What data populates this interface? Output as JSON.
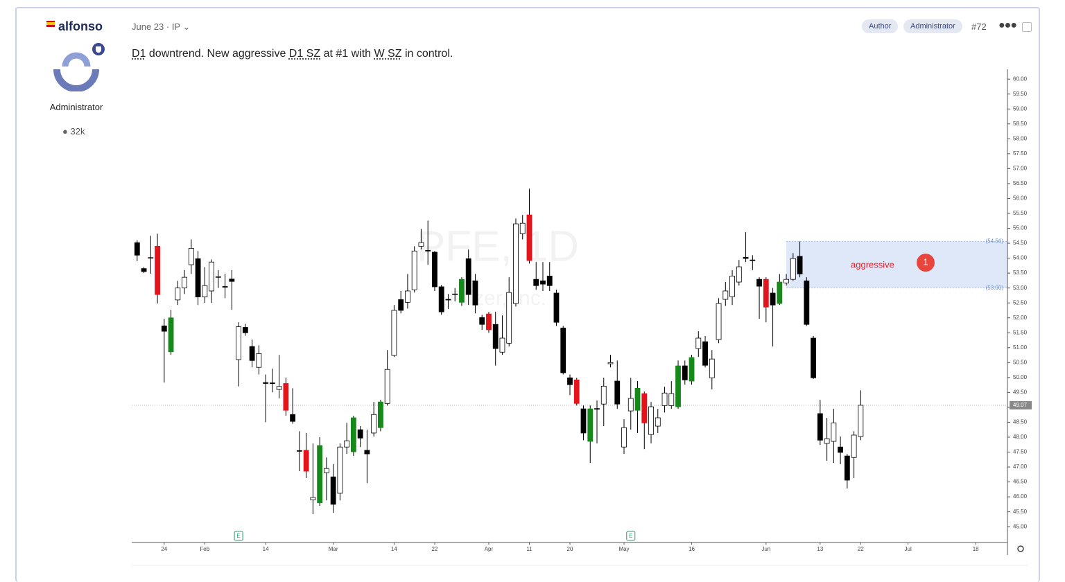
{
  "post": {
    "author": "alfonso",
    "role": "Administrator",
    "post_count": "32k",
    "date": "June 23 · IP",
    "badges": [
      "Author",
      "Administrator"
    ],
    "number": "#72",
    "body": [
      "D1",
      " downtrend. New aggressive ",
      "D1 SZ",
      " at #1 with ",
      "W SZ",
      " in control."
    ]
  },
  "chart_data": {
    "type": "candlestick",
    "watermark": [
      "PFE, 1D",
      "Pfizer, Inc."
    ],
    "x": [
      0,
      1,
      2,
      3,
      4,
      5,
      6,
      7,
      8,
      9,
      10,
      11,
      12,
      13,
      14,
      15,
      16,
      17,
      18,
      19,
      20,
      21,
      22,
      23,
      24,
      25,
      26,
      27,
      28,
      29,
      30,
      31,
      32,
      33,
      34,
      35,
      36,
      37,
      38,
      39,
      40,
      41,
      42,
      43,
      44,
      45,
      46,
      47,
      48,
      49,
      50,
      51,
      52,
      53,
      54,
      55,
      56,
      57,
      58,
      59,
      60,
      61,
      62,
      63,
      64,
      65,
      66,
      67,
      68,
      69,
      70,
      71,
      72,
      73,
      74,
      75,
      76,
      77,
      78,
      79,
      80,
      81,
      82,
      83,
      84,
      85,
      86,
      87,
      88,
      89,
      90,
      91,
      92,
      93,
      94,
      95,
      96,
      97,
      98,
      99,
      100,
      101,
      102,
      103,
      104,
      105,
      106,
      107
    ],
    "open": [
      54.52,
      53.65,
      54.0,
      54.4,
      51.73,
      50.86,
      52.6,
      53.0,
      53.78,
      53.98,
      52.7,
      52.9,
      53.36,
      53.05,
      53.3,
      50.6,
      51.68,
      51.04,
      50.34,
      49.83,
      49.82,
      49.6,
      49.8,
      48.76,
      47.55,
      47.56,
      45.9,
      45.8,
      46.81,
      46.67,
      46.12,
      47.67,
      47.51,
      48.25,
      47.56,
      48.14,
      48.32,
      49.13,
      50.74,
      52.61,
      52.52,
      52.94,
      54.4,
      54.26,
      54.2,
      53.04,
      52.62,
      52.78,
      52.52,
      53.98,
      53.24,
      52.01,
      52.13,
      51.78,
      50.85,
      51.15,
      52.48,
      54.82,
      55.45,
      53.29,
      53.24,
      53.4,
      52.83,
      51.66,
      49.99,
      49.92,
      48.95,
      47.86,
      48.96,
      49.11,
      50.46,
      49.88,
      47.67,
      48.88,
      48.9,
      49.46,
      48.09,
      48.37,
      49.06,
      49.06,
      49.02,
      50.39,
      49.88,
      50.97,
      51.2,
      49.99,
      51.27,
      52.62,
      52.71,
      53.2,
      54.03,
      53.94,
      53.29,
      53.29,
      52.83,
      52.48,
      53.17,
      53.29,
      54.06,
      53.24,
      51.32,
      48.79,
      47.79,
      47.86,
      47.67,
      47.37,
      47.32,
      48.02
    ],
    "high": [
      54.6,
      53.7,
      54.75,
      54.82,
      51.97,
      52.27,
      53.24,
      53.6,
      54.63,
      54.24,
      53.7,
      53.96,
      53.6,
      53.48,
      53.6,
      51.85,
      51.8,
      51.27,
      51.08,
      50.1,
      50.3,
      50.76,
      50.0,
      49.64,
      48.2,
      48.14,
      47.79,
      48.0,
      47.32,
      47.1,
      47.79,
      48.48,
      48.72,
      48.37,
      48.25,
      49.18,
      49.25,
      50.92,
      52.43,
      52.9,
      53.47,
      54.4,
      54.98,
      55.26,
      54.24,
      53.1,
      52.8,
      53.0,
      53.36,
      54.29,
      53.47,
      52.1,
      52.2,
      52.2,
      52.08,
      53.36,
      55.33,
      55.45,
      56.33,
      53.87,
      53.87,
      53.87,
      52.94,
      51.73,
      50.1,
      49.99,
      49.06,
      49.06,
      49.23,
      49.99,
      50.76,
      50.57,
      48.6,
      49.99,
      49.88,
      49.53,
      49.18,
      48.95,
      49.69,
      49.88,
      50.57,
      50.57,
      50.76,
      51.55,
      51.39,
      50.92,
      52.66,
      53.2,
      53.6,
      53.94,
      54.87,
      54.1,
      53.36,
      53.36,
      53.0,
      53.47,
      53.47,
      54.17,
      54.56,
      53.36,
      51.39,
      49.25,
      48.65,
      48.95,
      48.02,
      47.44,
      48.2,
      49.57
    ],
    "low": [
      53.9,
      53.5,
      53.48,
      52.48,
      49.83,
      50.76,
      52.43,
      52.8,
      53.47,
      52.43,
      52.5,
      52.5,
      53.0,
      52.66,
      52.27,
      49.7,
      51.4,
      50.34,
      50.1,
      48.5,
      49.5,
      49.3,
      48.72,
      48.45,
      46.86,
      46.63,
      45.42,
      45.7,
      45.88,
      45.47,
      45.88,
      47.44,
      47.37,
      47.67,
      46.46,
      48.02,
      48.2,
      49.06,
      50.69,
      52.15,
      52.31,
      52.85,
      54.29,
      53.78,
      52.9,
      52.1,
      52.3,
      52.55,
      52.4,
      52.43,
      52.15,
      51.6,
      51.5,
      50.4,
      50.76,
      51.04,
      52.38,
      54.63,
      53.82,
      52.94,
      52.9,
      52.9,
      51.73,
      50.1,
      49.41,
      49.06,
      47.9,
      47.14,
      47.79,
      48.37,
      50.34,
      48.95,
      47.44,
      48.25,
      48.14,
      47.6,
      47.79,
      48.14,
      48.83,
      48.95,
      48.95,
      49.76,
      49.76,
      50.69,
      50.34,
      49.6,
      51.15,
      52.4,
      52.43,
      53.08,
      53.87,
      53.6,
      51.97,
      51.85,
      51.04,
      52.43,
      53.08,
      53.24,
      53.36,
      51.73,
      49.95,
      47.74,
      47.21,
      47.14,
      47.09,
      46.28,
      46.63,
      47.9
    ],
    "close": [
      54.1,
      53.55,
      54.02,
      52.78,
      51.55,
      52.0,
      53.0,
      53.36,
      54.33,
      52.7,
      53.08,
      53.87,
      53.38,
      53.03,
      53.22,
      51.7,
      51.5,
      50.57,
      50.8,
      49.8,
      49.8,
      49.7,
      48.9,
      48.53,
      47.53,
      46.86,
      45.98,
      47.72,
      46.95,
      45.75,
      47.67,
      47.88,
      48.65,
      47.97,
      47.44,
      48.76,
      49.18,
      50.27,
      52.25,
      52.25,
      52.9,
      54.24,
      54.52,
      54.24,
      53.04,
      52.2,
      52.6,
      52.8,
      53.29,
      52.78,
      52.43,
      51.78,
      51.6,
      50.97,
      51.32,
      52.85,
      55.15,
      55.17,
      53.92,
      53.08,
      53.13,
      53.08,
      51.85,
      50.16,
      49.76,
      49.13,
      48.14,
      48.95,
      48.95,
      49.71,
      50.5,
      49.11,
      48.32,
      49.3,
      49.64,
      48.48,
      49.02,
      48.65,
      49.48,
      49.46,
      50.39,
      49.92,
      50.67,
      51.32,
      50.41,
      50.62,
      52.48,
      52.9,
      53.4,
      53.71,
      53.99,
      53.92,
      53.06,
      52.36,
      52.43,
      53.2,
      53.29,
      53.99,
      53.47,
      51.78,
      49.99,
      47.9,
      47.95,
      48.48,
      47.49,
      46.56,
      48.07,
      49.07
    ],
    "colors": [
      "#000000",
      "#000000",
      "#ffffff",
      "#e3141c",
      "#000000",
      "#16891a",
      "#ffffff",
      "#ffffff",
      "#ffffff",
      "#000000",
      "#ffffff",
      "#ffffff",
      "#ffffff",
      "#000000",
      "#000000",
      "#ffffff",
      "#000000",
      "#000000",
      "#ffffff",
      "#000000",
      "#000000",
      "#ffffff",
      "#e3141c",
      "#000000",
      "#000000",
      "#e3141c",
      "#ffffff",
      "#16891a",
      "#ffffff",
      "#000000",
      "#ffffff",
      "#ffffff",
      "#16891a",
      "#000000",
      "#000000",
      "#ffffff",
      "#16891a",
      "#ffffff",
      "#ffffff",
      "#000000",
      "#ffffff",
      "#ffffff",
      "#ffffff",
      "#000000",
      "#000000",
      "#000000",
      "#000000",
      "#ffffff",
      "#16891a",
      "#000000",
      "#000000",
      "#000000",
      "#e3141c",
      "#000000",
      "#ffffff",
      "#ffffff",
      "#ffffff",
      "#ffffff",
      "#e3141c",
      "#000000",
      "#000000",
      "#000000",
      "#000000",
      "#000000",
      "#000000",
      "#e3141c",
      "#000000",
      "#16891a",
      "#000000",
      "#ffffff",
      "#ffffff",
      "#000000",
      "#ffffff",
      "#ffffff",
      "#16891a",
      "#e3141c",
      "#ffffff",
      "#ffffff",
      "#ffffff",
      "#ffffff",
      "#16891a",
      "#000000",
      "#16891a",
      "#ffffff",
      "#000000",
      "#ffffff",
      "#ffffff",
      "#ffffff",
      "#ffffff",
      "#ffffff",
      "#000000",
      "#000000",
      "#000000",
      "#e3141c",
      "#000000",
      "#16891a",
      "#ffffff",
      "#ffffff",
      "#000000",
      "#000000",
      "#000000",
      "#000000",
      "#ffffff",
      "#ffffff",
      "#000000",
      "#000000",
      "#ffffff",
      "#ffffff"
    ],
    "xlim": [
      -0.8,
      128.7
    ],
    "ylim": [
      44.47,
      60.33
    ],
    "xticks": [
      {
        "value": 4,
        "label": "24"
      },
      {
        "value": 10,
        "label": "Feb"
      },
      {
        "value": 19,
        "label": "14"
      },
      {
        "value": 29,
        "label": "Mar"
      },
      {
        "value": 38,
        "label": "14"
      },
      {
        "value": 44,
        "label": "22"
      },
      {
        "value": 52,
        "label": "Apr"
      },
      {
        "value": 58,
        "label": "11"
      },
      {
        "value": 64,
        "label": "20"
      },
      {
        "value": 72,
        "label": "May"
      },
      {
        "value": 82,
        "label": "16"
      },
      {
        "value": 93,
        "label": "Jun"
      },
      {
        "value": 101,
        "label": "13"
      },
      {
        "value": 107,
        "label": "22"
      },
      {
        "value": 114,
        "label": "Jul"
      },
      {
        "value": 124,
        "label": "18"
      }
    ],
    "yticks": [
      {
        "value": 60,
        "label": "60.00"
      },
      {
        "value": 59.5,
        "label": "59.50"
      },
      {
        "value": 59,
        "label": "59.00"
      },
      {
        "value": 58.5,
        "label": "58.50"
      },
      {
        "value": 58,
        "label": "58.00"
      },
      {
        "value": 57.5,
        "label": "57.50"
      },
      {
        "value": 57,
        "label": "57.00"
      },
      {
        "value": 56.5,
        "label": "56.50"
      },
      {
        "value": 56,
        "label": "56.00"
      },
      {
        "value": 55.5,
        "label": "55.50"
      },
      {
        "value": 55,
        "label": "55.00"
      },
      {
        "value": 54.5,
        "label": "54.50"
      },
      {
        "value": 54,
        "label": "54.00"
      },
      {
        "value": 53.5,
        "label": "53.50"
      },
      {
        "value": 53,
        "label": "53.00"
      },
      {
        "value": 52.5,
        "label": "52.50"
      },
      {
        "value": 52,
        "label": "52.00"
      },
      {
        "value": 51.5,
        "label": "51.50"
      },
      {
        "value": 51,
        "label": "51.00"
      },
      {
        "value": 50.5,
        "label": "50.50"
      },
      {
        "value": 50,
        "label": "50.00"
      },
      {
        "value": 49.5,
        "label": "49.50"
      },
      {
        "value": 49,
        "label": "49.00"
      },
      {
        "value": 48.5,
        "label": "48.50"
      },
      {
        "value": 48,
        "label": "48.00"
      },
      {
        "value": 47.5,
        "label": "47.50"
      },
      {
        "value": 47,
        "label": "47.00"
      },
      {
        "value": 46.5,
        "label": "46.50"
      },
      {
        "value": 46,
        "label": "46.00"
      },
      {
        "value": 45.5,
        "label": "45.50"
      },
      {
        "value": 45,
        "label": "45.00"
      }
    ],
    "last_price": {
      "value": 49.07,
      "label": "49.07"
    },
    "zone": {
      "x_start": 96,
      "top": {
        "value": 54.56,
        "label": "(54.56)"
      },
      "bottom": {
        "value": 53.0,
        "label": "(53.00)"
      },
      "label": "aggressive",
      "marker": "1",
      "color": "#dbe6f8"
    },
    "events": [
      {
        "x": 15,
        "label": "E"
      },
      {
        "x": 73,
        "label": "E"
      }
    ]
  }
}
